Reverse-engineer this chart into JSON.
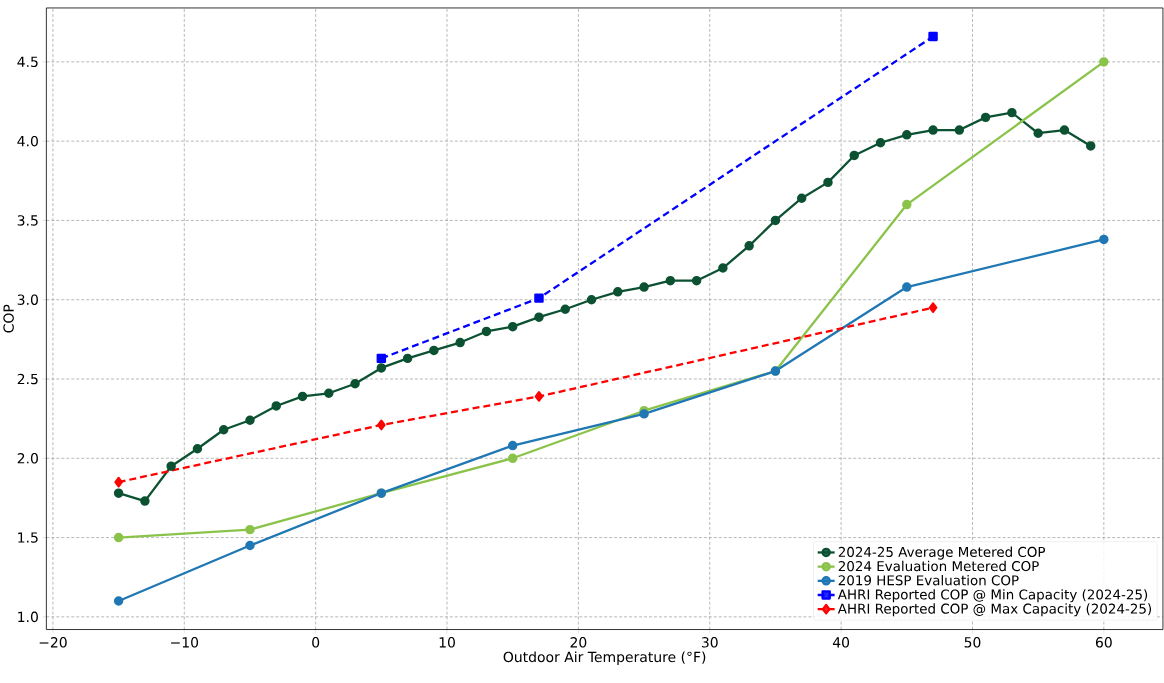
{
  "chart_data": {
    "type": "line",
    "xlabel": "Outdoor Air Temperature (°F)",
    "ylabel": "COP",
    "xlim": [
      -20.5,
      64.5
    ],
    "ylim": [
      0.92,
      4.84
    ],
    "xticks": [
      {
        "value": -20,
        "label": "−20"
      },
      {
        "value": -10,
        "label": "−10"
      },
      0,
      10,
      20,
      30,
      40,
      50,
      60
    ],
    "yticks": [
      {
        "value": 1,
        "label": "1.0"
      },
      1.5,
      {
        "value": 2,
        "label": "2.0"
      },
      2.5,
      {
        "value": 3,
        "label": "3.0"
      },
      3.5,
      {
        "value": 4,
        "label": "4.0"
      },
      4.5
    ],
    "grid": true,
    "legend": "bottom right",
    "series": [
      {
        "name": "2024-25 Average Metered COP",
        "color": "#0b5132",
        "marker": "circle",
        "line_style": "solid",
        "x": [
          -15,
          -13,
          -11,
          -9,
          -7,
          -5,
          -3,
          -1,
          1,
          3,
          5,
          7,
          9,
          11,
          13,
          15,
          17,
          19,
          21,
          23,
          25,
          27,
          29,
          31,
          33,
          35,
          37,
          39,
          41,
          43,
          45,
          47,
          49,
          51,
          53,
          55,
          57,
          59
        ],
        "values": [
          1.78,
          1.73,
          1.95,
          2.06,
          2.18,
          2.24,
          2.33,
          2.39,
          2.41,
          2.47,
          2.57,
          2.63,
          2.68,
          2.73,
          2.8,
          2.83,
          2.89,
          2.94,
          3.0,
          3.05,
          3.08,
          3.12,
          3.12,
          3.2,
          3.34,
          3.5,
          3.64,
          3.74,
          3.91,
          3.99,
          4.04,
          4.07,
          4.07,
          4.15,
          4.18,
          4.05,
          4.07,
          3.97
        ]
      },
      {
        "name": "2024 Evaluation Metered COP",
        "color": "#8bc34a",
        "marker": "circle",
        "line_style": "solid",
        "x": [
          -15,
          -5,
          5,
          15,
          25,
          35,
          45,
          60
        ],
        "values": [
          1.5,
          1.55,
          1.78,
          2.0,
          2.3,
          2.55,
          3.6,
          4.5
        ]
      },
      {
        "name": "2019 HESP Evaluation COP",
        "color": "#1f77b4",
        "marker": "circle",
        "line_style": "solid",
        "x": [
          -15,
          -5,
          5,
          15,
          25,
          35,
          45,
          60
        ],
        "values": [
          1.1,
          1.45,
          1.78,
          2.08,
          2.28,
          2.55,
          3.08,
          3.38
        ]
      },
      {
        "name": "AHRI Reported COP @ Min Capacity (2024-25)",
        "color": "#0000ff",
        "marker": "square",
        "line_style": "dashed",
        "x": [
          5,
          17,
          47
        ],
        "values": [
          2.63,
          3.01,
          4.66
        ]
      },
      {
        "name": "AHRI Reported COP @ Max Capacity (2024-25)",
        "color": "#ff0000",
        "marker": "diamond",
        "line_style": "dashed",
        "x": [
          -15,
          5,
          17,
          47
        ],
        "values": [
          1.85,
          2.21,
          2.39,
          2.95
        ]
      }
    ]
  }
}
